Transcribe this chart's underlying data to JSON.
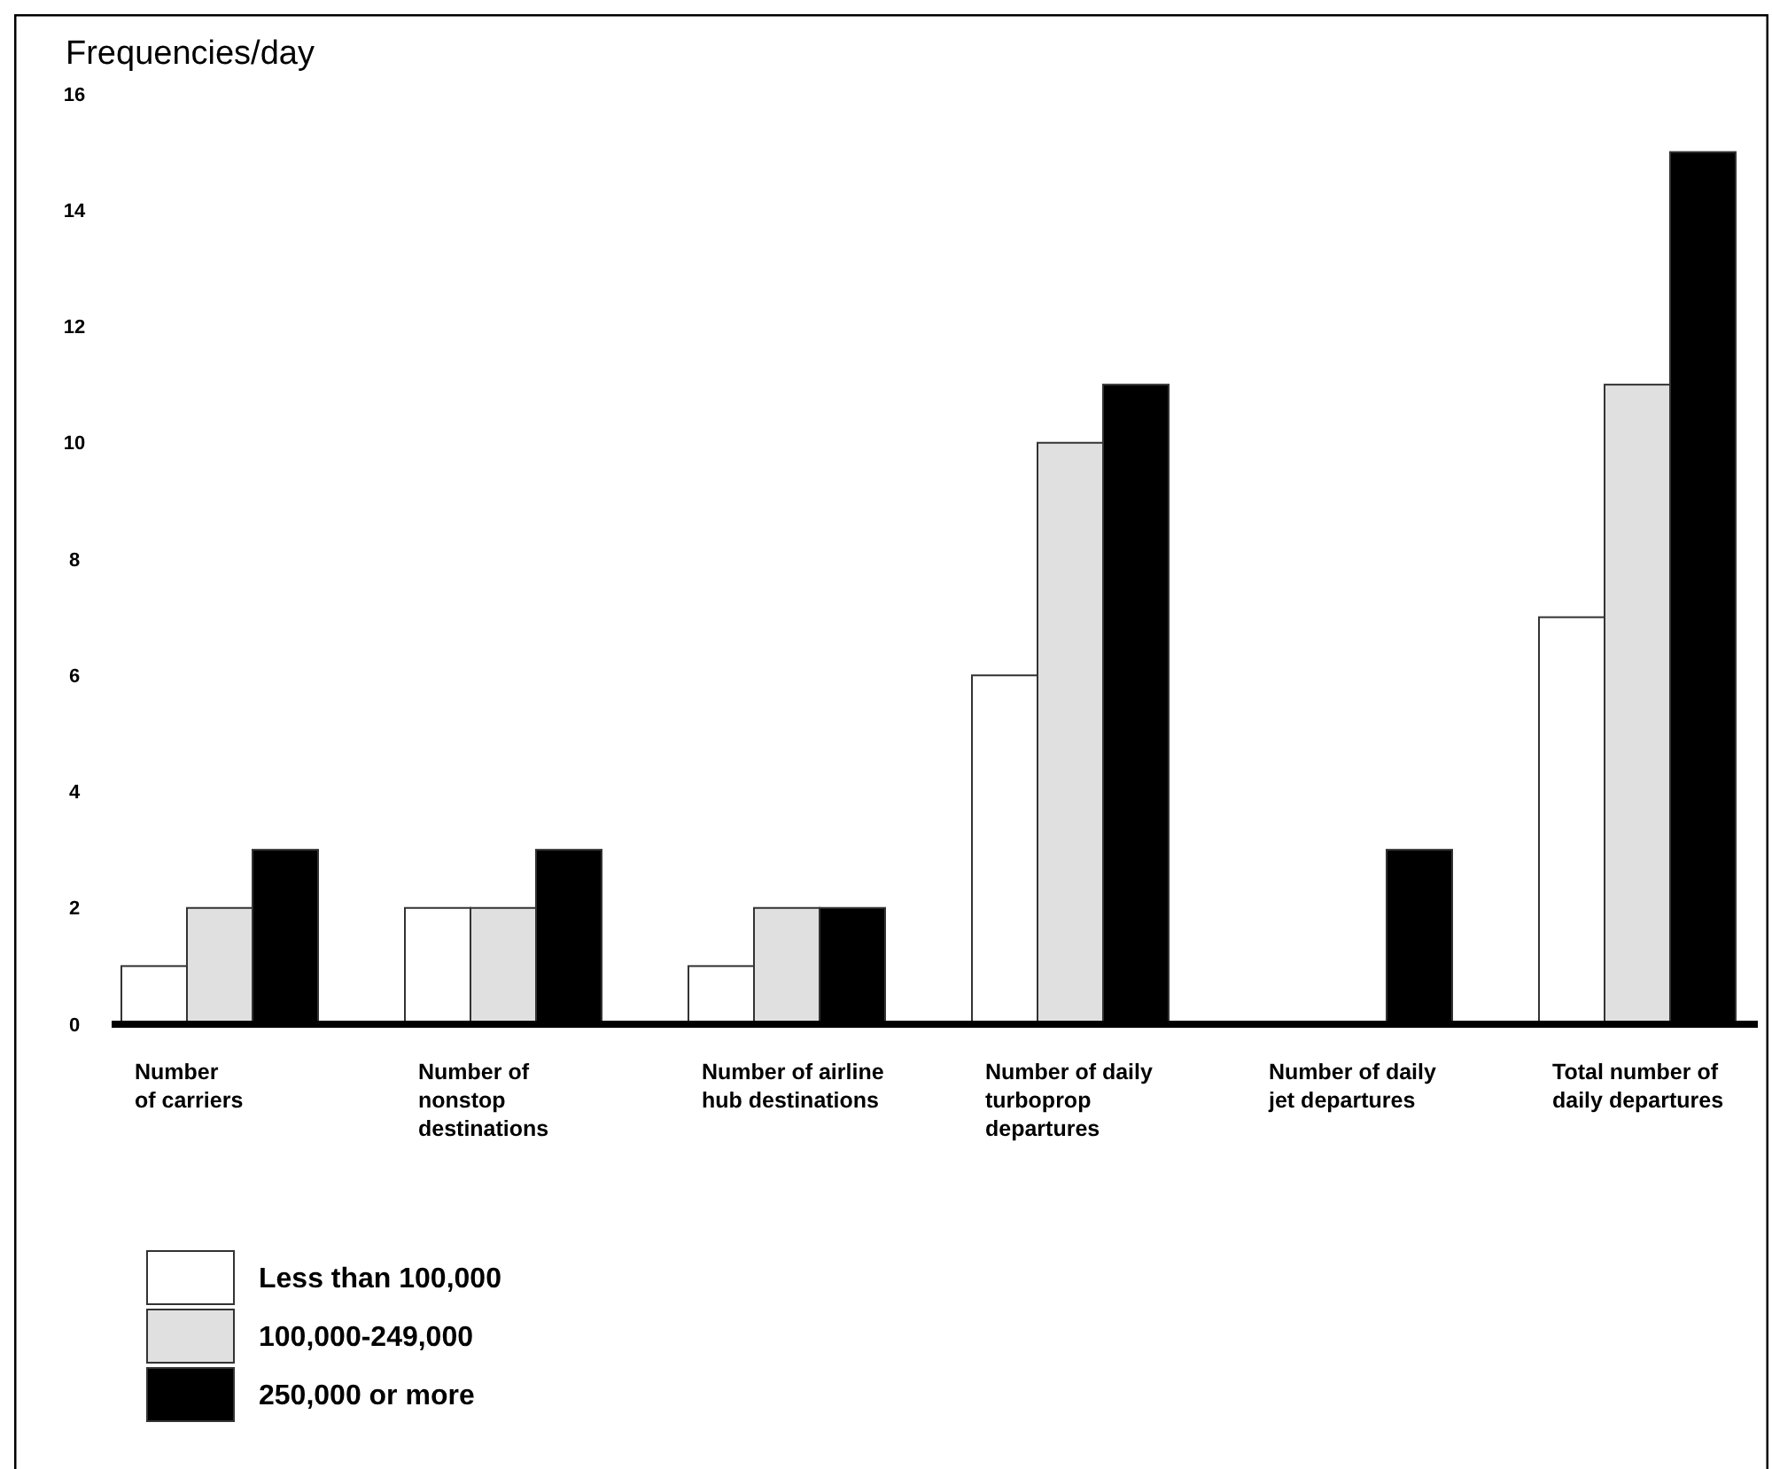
{
  "chart_data": {
    "type": "bar",
    "ylabel": "Frequencies/day",
    "categories": [
      "Number\nof carriers",
      "Number of\nnonstop\ndestinations",
      "Number of airline\nhub destinations",
      "Number of daily\nturboprop\ndepartures",
      "Number of daily\njet departures",
      "Total number of\ndaily departures"
    ],
    "series": [
      {
        "name": "Less than 100,000",
        "color": "#ffffff",
        "values": [
          1,
          2,
          1,
          6,
          0,
          7
        ]
      },
      {
        "name": "100,000-249,000",
        "color": "#e0e0e0",
        "values": [
          2,
          2,
          2,
          10,
          0,
          11
        ]
      },
      {
        "name": "250,000 or more",
        "color": "#000000",
        "values": [
          3,
          3,
          2,
          11,
          3,
          15
        ]
      }
    ],
    "ylim": [
      0,
      16
    ],
    "yticks": [
      0,
      2,
      4,
      6,
      8,
      10,
      12,
      14,
      16
    ],
    "grid": false,
    "legend": "bottom left"
  }
}
